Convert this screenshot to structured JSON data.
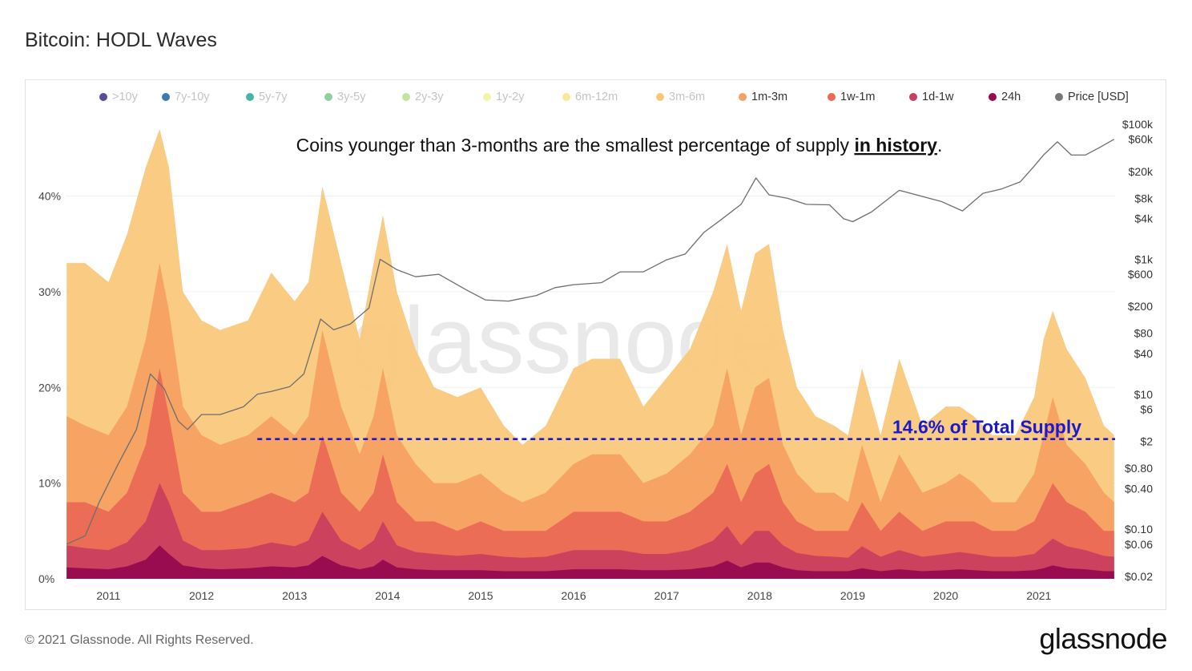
{
  "page": {
    "title": "Bitcoin: HODL Waves",
    "copyright": "© 2021 Glassnode. All Rights Reserved.",
    "logo": "glassnode",
    "watermark": "glassnode"
  },
  "chart_data": {
    "type": "area",
    "title": "Bitcoin: HODL Waves",
    "legend_position": "top",
    "grid": true,
    "annotation": {
      "text_before": "Coins younger than 3-months are the smallest percentage of supply ",
      "text_emphasis": "in history",
      "text_after": ".",
      "reference_line_label": "14.6% of Total Supply",
      "reference_value": 14.6,
      "reference_line_start": 2012.6
    },
    "legend": [
      {
        "name": ">10y",
        "color": "#5b4b9a",
        "active": false
      },
      {
        "name": "7y-10y",
        "color": "#3a7ab3",
        "active": false
      },
      {
        "name": "5y-7y",
        "color": "#49b3a7",
        "active": false
      },
      {
        "name": "3y-5y",
        "color": "#8fd19e",
        "active": false
      },
      {
        "name": "2y-3y",
        "color": "#c4e59b",
        "active": false
      },
      {
        "name": "1y-2y",
        "color": "#f3f5a8",
        "active": false
      },
      {
        "name": "6m-12m",
        "color": "#fbe79a",
        "active": false
      },
      {
        "name": "3m-6m",
        "color": "#f9c778",
        "active": false
      },
      {
        "name": "1m-3m",
        "color": "#f6a062",
        "active": true
      },
      {
        "name": "1w-1m",
        "color": "#ea6a55",
        "active": true
      },
      {
        "name": "1d-1w",
        "color": "#c93f5f",
        "active": true
      },
      {
        "name": "24h",
        "color": "#960a4e",
        "active": true
      },
      {
        "name": "Price [USD]",
        "color": "#777777",
        "active": true
      }
    ],
    "x_ticks": [
      "2011",
      "2012",
      "2013",
      "2014",
      "2015",
      "2016",
      "2017",
      "2018",
      "2019",
      "2020",
      "2021"
    ],
    "xlim": [
      2010.54,
      2021.82
    ],
    "y_left_ticks": [
      "0%",
      "10%",
      "20%",
      "30%",
      "40%"
    ],
    "ylim_left": [
      0,
      47.5
    ],
    "y_right_ticks": [
      "$100k",
      "$60k",
      "$20k",
      "$8k",
      "$4k",
      "$1k",
      "$600",
      "$200",
      "$80",
      "$40",
      "$10",
      "$6",
      "$2",
      "$0.80",
      "$0.40",
      "$0.10",
      "$0.06",
      "$0.02"
    ],
    "y_right_scale": "log",
    "x": [
      2010.55,
      2010.75,
      2011.0,
      2011.2,
      2011.4,
      2011.55,
      2011.65,
      2011.8,
      2012.0,
      2012.2,
      2012.5,
      2012.75,
      2013.0,
      2013.15,
      2013.3,
      2013.5,
      2013.7,
      2013.85,
      2013.95,
      2014.1,
      2014.3,
      2014.5,
      2014.75,
      2015.0,
      2015.25,
      2015.45,
      2015.7,
      2016.0,
      2016.2,
      2016.5,
      2016.75,
      2017.0,
      2017.25,
      2017.5,
      2017.65,
      2017.8,
      2017.95,
      2018.1,
      2018.25,
      2018.4,
      2018.6,
      2018.8,
      2018.95,
      2019.1,
      2019.3,
      2019.5,
      2019.75,
      2020.0,
      2020.15,
      2020.3,
      2020.5,
      2020.75,
      2020.95,
      2021.05,
      2021.15,
      2021.3,
      2021.5,
      2021.7,
      2021.81
    ],
    "series": [
      {
        "name": "3m-6m",
        "values": [
          33,
          33,
          31,
          36,
          43,
          47,
          43,
          30,
          27,
          26,
          27,
          32,
          29,
          31,
          41,
          33,
          25,
          33,
          38,
          30,
          24,
          20,
          19,
          20,
          16,
          14,
          16,
          22,
          23,
          23,
          18,
          21,
          24,
          30,
          35,
          28,
          34,
          35,
          26,
          20,
          17,
          16,
          15,
          22,
          15,
          23,
          16,
          18,
          18,
          17,
          15,
          15,
          19,
          25,
          28,
          24,
          21,
          16,
          15
        ]
      },
      {
        "name": "1m-3m",
        "values": [
          17,
          16,
          15,
          18,
          25,
          33,
          28,
          18,
          15,
          14,
          15,
          17,
          15,
          17,
          26,
          18,
          13,
          17,
          22,
          15,
          12,
          10,
          10,
          11,
          9,
          8,
          9,
          12,
          13,
          13,
          10,
          11,
          13,
          16,
          22,
          15,
          20,
          21,
          14,
          11,
          9,
          9,
          8,
          14,
          8,
          13,
          9,
          10,
          11,
          10,
          8,
          8,
          11,
          15,
          19,
          14,
          12,
          9,
          8
        ]
      },
      {
        "name": "1w-1m",
        "values": [
          8,
          8,
          7,
          9,
          14,
          22,
          17,
          9,
          7,
          7,
          8,
          9,
          8,
          9,
          15,
          9,
          7,
          9,
          13,
          8,
          6,
          6,
          5,
          6,
          5,
          5,
          5,
          7,
          7,
          7,
          6,
          6,
          7,
          9,
          12,
          8,
          11,
          12,
          8,
          6,
          5,
          5,
          5,
          8,
          5,
          7,
          5,
          6,
          6,
          6,
          5,
          5,
          6,
          8,
          10,
          8,
          7,
          5,
          5
        ]
      },
      {
        "name": "1d-1w",
        "values": [
          3.5,
          3.2,
          3,
          3.8,
          6,
          10,
          8,
          4,
          3,
          3,
          3.2,
          3.8,
          3.4,
          4,
          7,
          4,
          3,
          4,
          6,
          3.5,
          2.8,
          2.6,
          2.4,
          2.6,
          2.3,
          2.2,
          2.3,
          3,
          3,
          3,
          2.6,
          2.6,
          3,
          4,
          5.5,
          3.5,
          5,
          5,
          3.5,
          2.7,
          2.4,
          2.3,
          2.2,
          3.4,
          2.3,
          3,
          2.3,
          2.6,
          2.8,
          2.6,
          2.3,
          2.3,
          2.6,
          3.4,
          4.2,
          3.4,
          3,
          2.4,
          2.3
        ]
      },
      {
        "name": "24h",
        "values": [
          1.2,
          1.1,
          1,
          1.3,
          2,
          3.5,
          2.6,
          1.4,
          1.1,
          1,
          1.1,
          1.3,
          1.2,
          1.4,
          2.4,
          1.4,
          1,
          1.3,
          2,
          1.2,
          1,
          0.9,
          0.9,
          0.9,
          0.8,
          0.8,
          0.8,
          1,
          1,
          1,
          0.9,
          0.9,
          1,
          1.3,
          1.9,
          1.2,
          1.7,
          1.7,
          1.2,
          0.9,
          0.8,
          0.8,
          0.8,
          1.1,
          0.8,
          1,
          0.8,
          0.9,
          1,
          0.9,
          0.8,
          0.8,
          0.9,
          1.1,
          1.4,
          1.1,
          1,
          0.8,
          0.8
        ]
      }
    ],
    "price": {
      "name": "Price [USD]",
      "x": [
        2010.55,
        2010.75,
        2010.9,
        2011.1,
        2011.3,
        2011.45,
        2011.6,
        2011.75,
        2011.85,
        2012.0,
        2012.2,
        2012.45,
        2012.6,
        2012.75,
        2012.95,
        2013.1,
        2013.28,
        2013.42,
        2013.6,
        2013.8,
        2013.92,
        2014.1,
        2014.3,
        2014.55,
        2014.85,
        2015.05,
        2015.3,
        2015.6,
        2015.8,
        2016.0,
        2016.3,
        2016.5,
        2016.75,
        2017.0,
        2017.2,
        2017.4,
        2017.6,
        2017.8,
        2017.96,
        2018.1,
        2018.3,
        2018.5,
        2018.75,
        2018.9,
        2019.0,
        2019.2,
        2019.5,
        2019.75,
        2019.95,
        2020.18,
        2020.4,
        2020.6,
        2020.8,
        2020.95,
        2021.05,
        2021.2,
        2021.35,
        2021.5,
        2021.65,
        2021.81
      ],
      "y": [
        0.06,
        0.08,
        0.25,
        0.9,
        3,
        20,
        12,
        4,
        3,
        5,
        5,
        6.5,
        10,
        11,
        13,
        20,
        130,
        90,
        110,
        190,
        1000,
        700,
        550,
        600,
        350,
        250,
        240,
        290,
        380,
        420,
        450,
        650,
        650,
        980,
        1200,
        2500,
        4000,
        6500,
        16000,
        9000,
        8000,
        6500,
        6400,
        4000,
        3600,
        5000,
        10500,
        8500,
        7200,
        5200,
        9500,
        11000,
        14000,
        24000,
        35000,
        55000,
        35000,
        35000,
        45000,
        60000
      ]
    }
  }
}
